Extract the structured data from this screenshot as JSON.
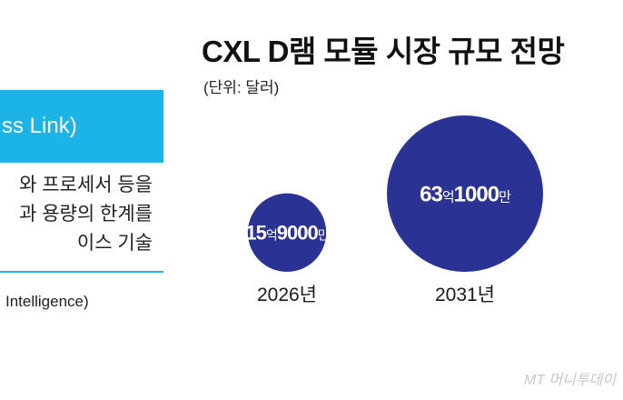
{
  "left_panel": {
    "banner_text": "ss Link)",
    "description_lines": [
      "와 프로세서 등을",
      "과 용량의 한계를",
      "이스 기술"
    ],
    "source": "Intelligence)",
    "accent_color": "#1cb3e6"
  },
  "chart_data": {
    "type": "bubble",
    "title": "CXL D램 모듈 시장 규모 전망",
    "unit": "(단위: 달러)",
    "bubble_color": "#2a3393",
    "categories": [
      "2026년",
      "2031년"
    ],
    "values": [
      1590000000,
      6310000000
    ],
    "value_labels": [
      [
        {
          "text": "15",
          "size": "big"
        },
        {
          "text": "억",
          "size": "small"
        },
        {
          "text": "9000",
          "size": "big"
        },
        {
          "text": "만",
          "size": "small"
        }
      ],
      [
        {
          "text": "63",
          "size": "big"
        },
        {
          "text": "억",
          "size": "small"
        },
        {
          "text": "1000",
          "size": "big"
        },
        {
          "text": "만",
          "size": "small"
        }
      ]
    ],
    "xlabel": "",
    "ylabel": ""
  },
  "watermark": "MT 머니투데이"
}
